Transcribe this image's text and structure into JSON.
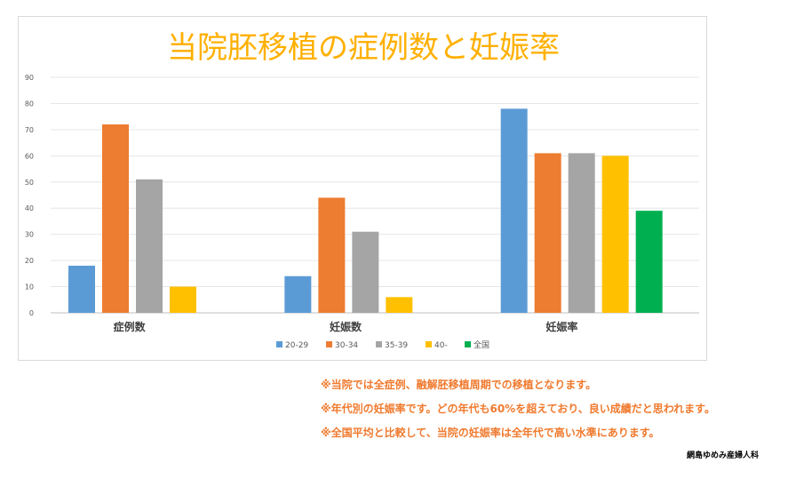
{
  "chart_data": {
    "type": "bar",
    "title": "当院胚移植の症例数と妊娠率",
    "categories": [
      "症例数",
      "妊娠数",
      "妊娠率"
    ],
    "ylim": [
      0,
      90
    ],
    "yticks": [
      0,
      10,
      20,
      30,
      40,
      50,
      60,
      70,
      80,
      90
    ],
    "grid": true,
    "legend_position": "bottom",
    "series": [
      {
        "name": "20-29",
        "color": "#5B9BD5",
        "values": [
          18,
          14,
          78
        ]
      },
      {
        "name": "30-34",
        "color": "#ED7D31",
        "values": [
          72,
          44,
          61
        ]
      },
      {
        "name": "35-39",
        "color": "#A5A5A5",
        "values": [
          51,
          31,
          61
        ]
      },
      {
        "name": "40-",
        "color": "#FFC000",
        "values": [
          10,
          6,
          60
        ]
      },
      {
        "name": "全国",
        "color": "#00B050",
        "values": [
          null,
          null,
          39
        ]
      }
    ]
  },
  "notes": [
    "※当院では全症例、融解胚移植周期での移植となります。",
    "※年代別の妊娠率です。どの年代も60%を超えており、良い成績だと思われます。",
    "※全国平均と比較して、当院の妊娠率は全年代で高い水準にあります。"
  ],
  "clinic_name": "網島ゆめみ産婦人科"
}
